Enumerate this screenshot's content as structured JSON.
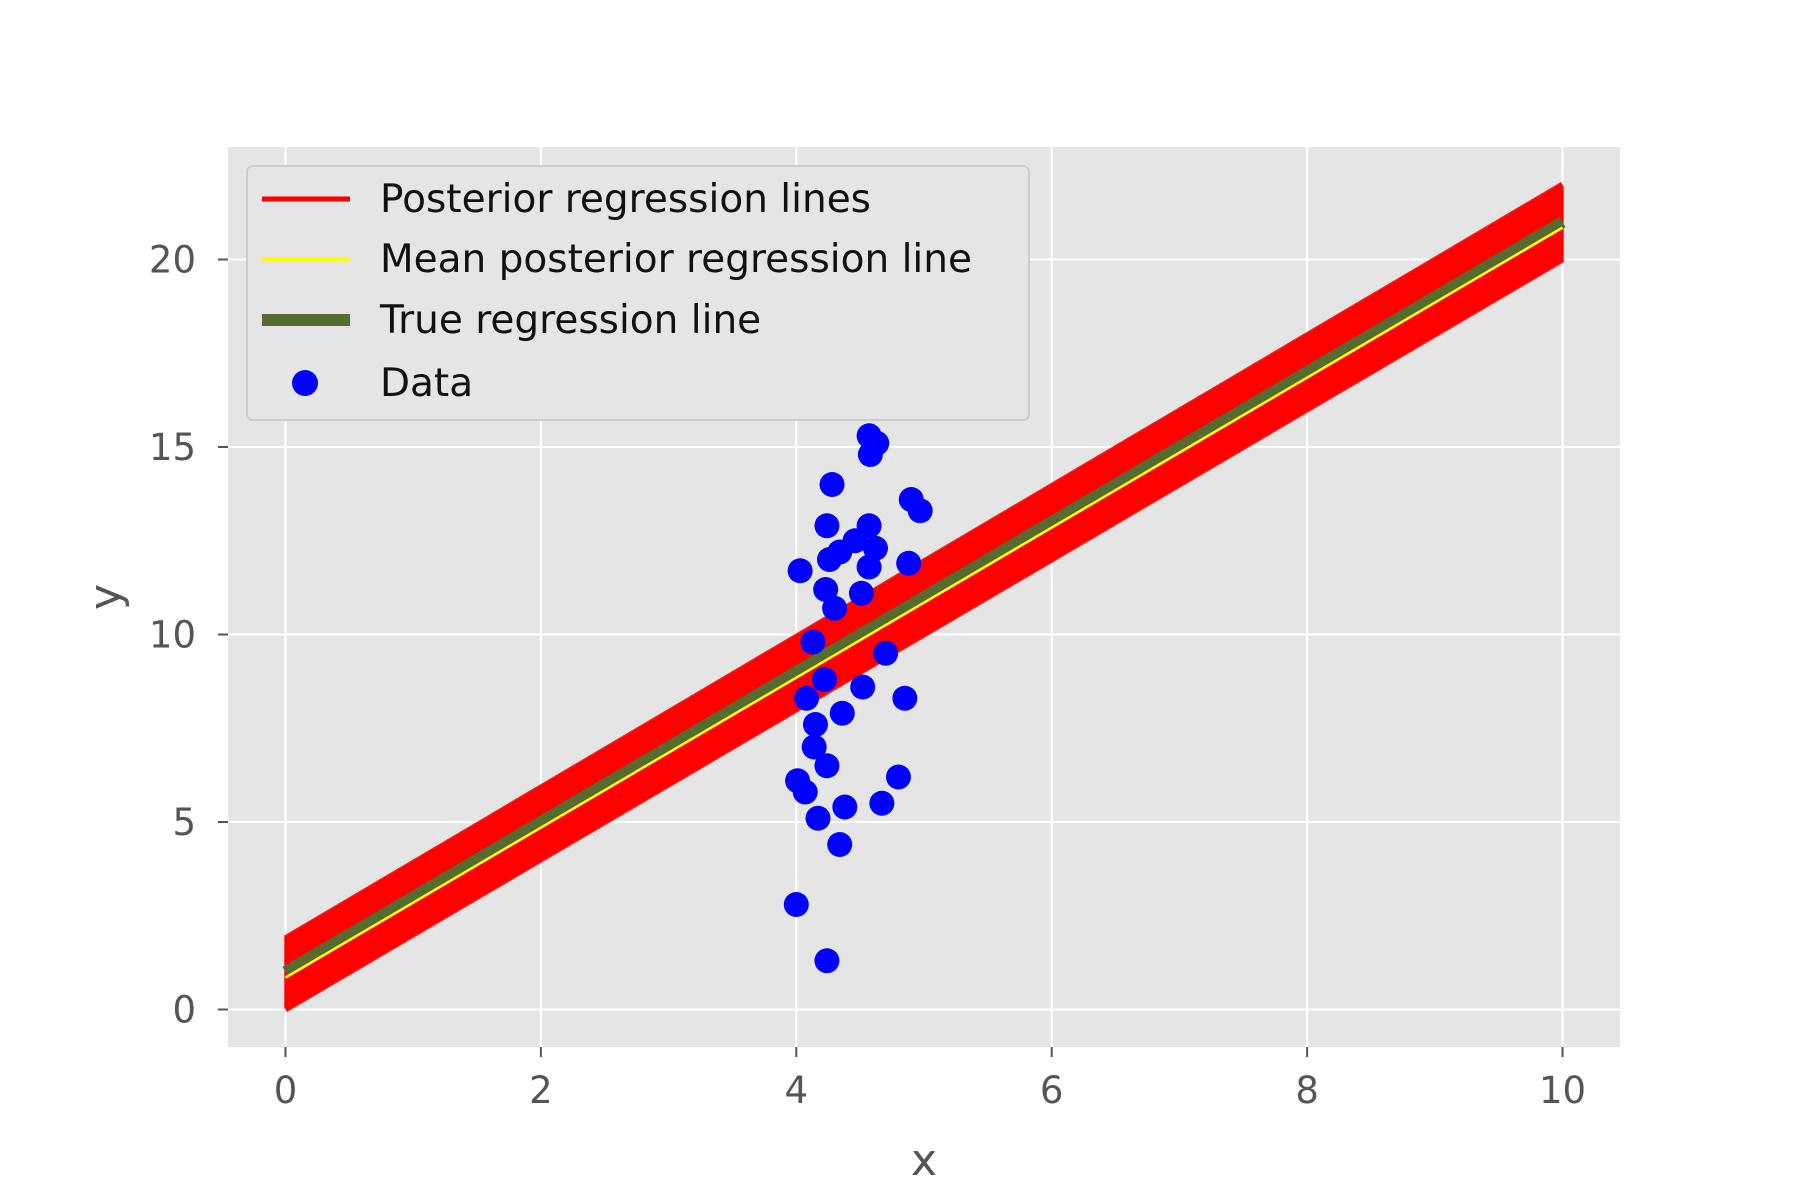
{
  "chart_data": {
    "type": "scatter",
    "xlabel": "x",
    "ylabel": "y",
    "xlim": [
      -0.45,
      10.45
    ],
    "ylim": [
      -1,
      23
    ],
    "xticks": [
      0,
      2,
      4,
      6,
      8,
      10
    ],
    "yticks": [
      0,
      5,
      10,
      15,
      20
    ],
    "grid": true,
    "legend": {
      "placement": "upper-left",
      "entries": [
        {
          "label": "Posterior regression lines",
          "color": "#ff0000",
          "marker": "line"
        },
        {
          "label": "Mean posterior regression line",
          "color": "#ffff00",
          "marker": "line"
        },
        {
          "label": "True regression line",
          "color": "#556b2f",
          "marker": "thick-line"
        },
        {
          "label": "Data",
          "color": "#0000ff",
          "marker": "dot"
        }
      ]
    },
    "posterior_lines": {
      "color": "#ff0000",
      "x_range": [
        0,
        10
      ],
      "intercept_range": [
        0.0,
        1.9
      ],
      "slope_range": [
        1.85,
        2.15
      ],
      "at_x_max_range": [
        20.0,
        22.0
      ]
    },
    "mean_posterior_line": {
      "color": "#ffff00",
      "intercept": 0.85,
      "slope": 2.0
    },
    "true_regression_line": {
      "color": "#556b2f",
      "intercept": 1.0,
      "slope": 2.0
    },
    "data": {
      "color": "#0000ff",
      "points": [
        [
          4.0,
          2.8
        ],
        [
          4.24,
          1.3
        ],
        [
          4.34,
          4.4
        ],
        [
          4.17,
          5.1
        ],
        [
          4.38,
          5.4
        ],
        [
          4.67,
          5.5
        ],
        [
          4.8,
          6.2
        ],
        [
          4.01,
          6.1
        ],
        [
          4.07,
          5.8
        ],
        [
          4.24,
          6.5
        ],
        [
          4.14,
          7.0
        ],
        [
          4.15,
          7.6
        ],
        [
          4.36,
          7.9
        ],
        [
          4.85,
          8.3
        ],
        [
          4.08,
          8.3
        ],
        [
          4.52,
          8.6
        ],
        [
          4.22,
          8.8
        ],
        [
          4.7,
          9.5
        ],
        [
          4.13,
          9.8
        ],
        [
          4.3,
          10.7
        ],
        [
          4.51,
          11.1
        ],
        [
          4.23,
          11.2
        ],
        [
          4.03,
          11.7
        ],
        [
          4.26,
          12.0
        ],
        [
          4.34,
          12.2
        ],
        [
          4.57,
          11.8
        ],
        [
          4.88,
          11.9
        ],
        [
          4.46,
          12.5
        ],
        [
          4.62,
          12.3
        ],
        [
          4.24,
          12.9
        ],
        [
          4.57,
          12.9
        ],
        [
          4.28,
          14.0
        ],
        [
          4.9,
          13.6
        ],
        [
          4.97,
          13.3
        ],
        [
          4.58,
          14.8
        ],
        [
          4.57,
          15.3
        ],
        [
          4.63,
          15.1
        ]
      ]
    }
  }
}
